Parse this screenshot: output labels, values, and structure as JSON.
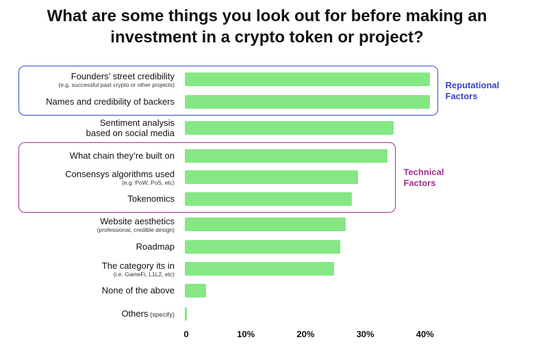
{
  "title_line1": "What are some things you look out for before making an",
  "title_line2": "investment in a crypto token or project?",
  "colors": {
    "bar": "#86e785",
    "reputational": "#3445c8",
    "technical": "#a3308f"
  },
  "groups": [
    {
      "line1": "Reputational",
      "line2": "Factors",
      "color": "#3445c8",
      "rows": [
        0,
        1
      ]
    },
    {
      "line1": "Technical",
      "line2": "Factors",
      "color": "#a3308f",
      "rows": [
        3,
        4,
        5
      ]
    }
  ],
  "chart_data": {
    "type": "bar",
    "orientation": "horizontal",
    "title": "What are some things you look out for before making an investment in a crypto token or project?",
    "categories": [
      {
        "label": "Founders’ street credibility",
        "note": "(e.g. successful past crypto or other projects)"
      },
      {
        "label": "Names and credibility of backers",
        "note": ""
      },
      {
        "label": "Sentiment analysis based on social media",
        "line1": "Sentiment analysis",
        "line2": "based on social media",
        "note": ""
      },
      {
        "label": "What chain they’re built on",
        "note": ""
      },
      {
        "label": "Consensys algorithms used",
        "note": "(e.g. PoW, PoS, etc)"
      },
      {
        "label": "Tokenomics",
        "note": ""
      },
      {
        "label": "Website aesthetics",
        "note": "(professional, credible design)"
      },
      {
        "label": "Roadmap",
        "note": ""
      },
      {
        "label": "The category its in",
        "note": "(i.e. GameFi, L1L2, etc)"
      },
      {
        "label": "None of the above",
        "note": ""
      },
      {
        "label": "Others",
        "inline_note": "(specify)",
        "note": ""
      }
    ],
    "values": [
      41,
      41,
      35,
      34,
      29,
      28,
      27,
      26,
      25,
      3.5,
      0.3
    ],
    "unit": "%",
    "xlim": [
      0,
      40
    ],
    "xticks": [
      "0",
      "10%",
      "20%",
      "30%",
      "40%"
    ],
    "xtick_values": [
      0,
      10,
      20,
      30,
      40
    ],
    "grid": false,
    "legend": "none"
  }
}
